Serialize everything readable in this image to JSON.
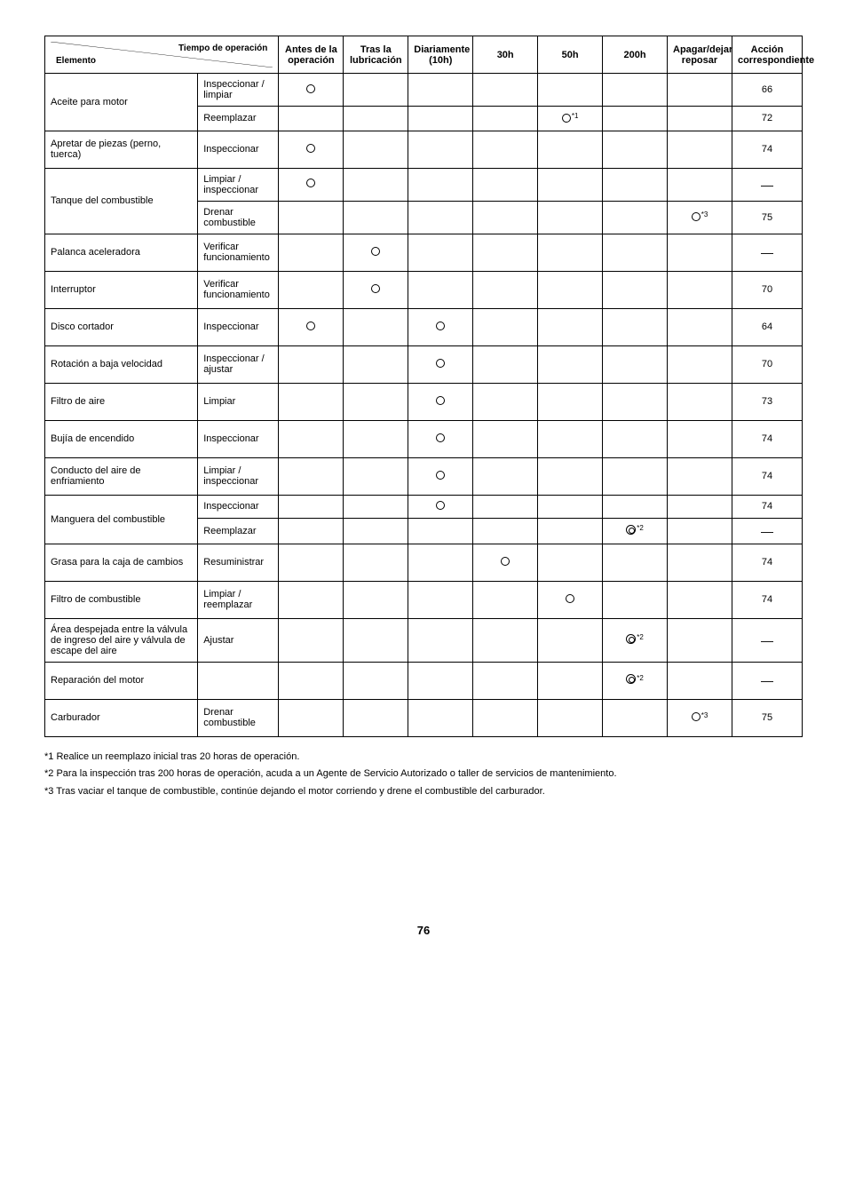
{
  "header": {
    "diag_top": "Tiempo de operación",
    "diag_bottom": "Elemento",
    "cols": {
      "before": "Antes de la operación",
      "after_lub": "Tras la lubricación",
      "daily": "Diariamente (10h)",
      "h30": "30h",
      "h50": "50h",
      "h200": "200h",
      "shutdown": "Apagar/dejar reposar",
      "page": "Acción correspondiente"
    }
  },
  "rows": [
    {
      "elem": "Aceite para motor",
      "rowspan": 2,
      "action": "Inspeccionar / limpiar",
      "marks": {
        "before": "o"
      },
      "page": "66"
    },
    {
      "action": "Reemplazar",
      "marks": {
        "h50": "o*1"
      },
      "page": "72"
    },
    {
      "elem": "Apretar de piezas (perno, tuerca)",
      "action": "Inspeccionar",
      "marks": {
        "before": "o"
      },
      "page": "74"
    },
    {
      "elem": "Tanque del combustible",
      "rowspan": 2,
      "action": "Limpiar / inspeccionar",
      "marks": {
        "before": "o"
      },
      "page": "—"
    },
    {
      "action": "Drenar combustible",
      "marks": {
        "shutdown": "o*3"
      },
      "page": "75"
    },
    {
      "elem": "Palanca aceleradora",
      "action": "Verificar funcionamiento",
      "marks": {
        "after_lub": "o"
      },
      "page": "—"
    },
    {
      "elem": "Interruptor",
      "action": "Verificar funcionamiento",
      "marks": {
        "after_lub": "o"
      },
      "page": "70"
    },
    {
      "elem": "Disco cortador",
      "action": "Inspeccionar",
      "marks": {
        "before": "o",
        "daily": "o"
      },
      "page": "64"
    },
    {
      "elem": "Rotación a baja velocidad",
      "action": "Inspeccionar / ajustar",
      "marks": {
        "daily": "o"
      },
      "page": "70"
    },
    {
      "elem": "Filtro de aire",
      "action": "Limpiar",
      "marks": {
        "daily": "o"
      },
      "page": "73"
    },
    {
      "elem": "Bujía de encendido",
      "action": "Inspeccionar",
      "marks": {
        "daily": "o"
      },
      "page": "74"
    },
    {
      "elem": "Conducto del aire de enfriamiento",
      "action": "Limpiar / inspeccionar",
      "marks": {
        "daily": "o"
      },
      "page": "74"
    },
    {
      "elem": "Manguera del combustible",
      "rowspan": 2,
      "action": "Inspeccionar",
      "marks": {
        "daily": "o"
      },
      "page": "74"
    },
    {
      "action": "Reemplazar",
      "marks": {
        "h200": "d*2"
      },
      "page": "—"
    },
    {
      "elem": "Grasa para la caja de cambios",
      "action": "Resuministrar",
      "marks": {
        "h30": "o"
      },
      "page": "74"
    },
    {
      "elem": "Filtro de combustible",
      "action": "Limpiar / reemplazar",
      "marks": {
        "h50": "o"
      },
      "page": "74"
    },
    {
      "elem": "Área despejada entre la válvula de ingreso del aire y válvula de escape del aire",
      "action": "Ajustar",
      "marks": {
        "h200": "d*2"
      },
      "page": "—"
    },
    {
      "elem": "Reparación del motor",
      "action": "",
      "marks": {
        "h200": "d*2"
      },
      "page": "—"
    },
    {
      "elem": "Carburador",
      "action": "Drenar combustible",
      "marks": {
        "shutdown": "o*3"
      },
      "page": "75"
    }
  ],
  "notes": [
    "*1  Realice un reemplazo inicial tras 20 horas de operación.",
    "*2  Para la inspección tras 200 horas de operación, acuda a un Agente de Servicio Autorizado o taller de servicios de mantenimiento.",
    "*3  Tras vaciar el tanque de combustible, continúe dejando el motor corriendo y drene el combustible del carburador."
  ],
  "page_number": "76"
}
